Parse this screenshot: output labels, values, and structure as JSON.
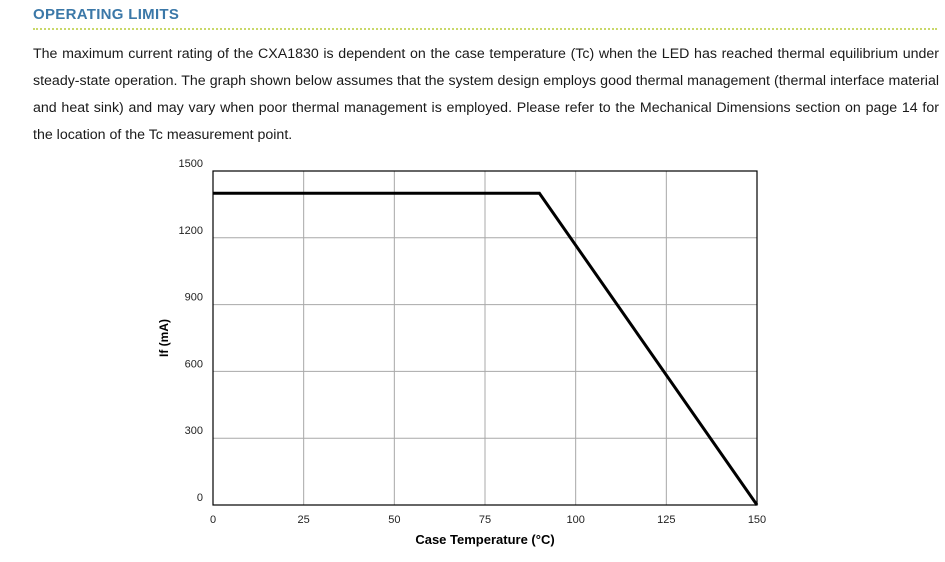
{
  "section": {
    "title": "OPERATING LIMITS",
    "accent_color": "#3b78a8",
    "rule_color": "#c9d86a"
  },
  "body": {
    "paragraph": "The maximum current rating of the CXA1830 is dependent on the case temperature (Tc) when the LED has reached thermal equilibrium under steady-state operation. The graph shown below assumes that the system design employs good thermal management (thermal interface material and heat sink) and may vary when poor thermal management is employed. Please refer to the Mechanical Dimensions section on page 14 for the location of the Tc measurement point."
  },
  "chart_data": {
    "type": "line",
    "title": "",
    "xlabel": "Case Temperature (°C)",
    "ylabel": "If (mA)",
    "xlim": [
      0,
      150
    ],
    "ylim": [
      0,
      1500
    ],
    "xticks": [
      0,
      25,
      50,
      75,
      100,
      125,
      150
    ],
    "yticks": [
      0,
      300,
      600,
      900,
      1200,
      1500
    ],
    "grid": true,
    "legend": "none",
    "series": [
      {
        "x": [
          0,
          90,
          150
        ],
        "y": [
          1400,
          1400,
          0
        ],
        "color": "#000000"
      }
    ]
  }
}
